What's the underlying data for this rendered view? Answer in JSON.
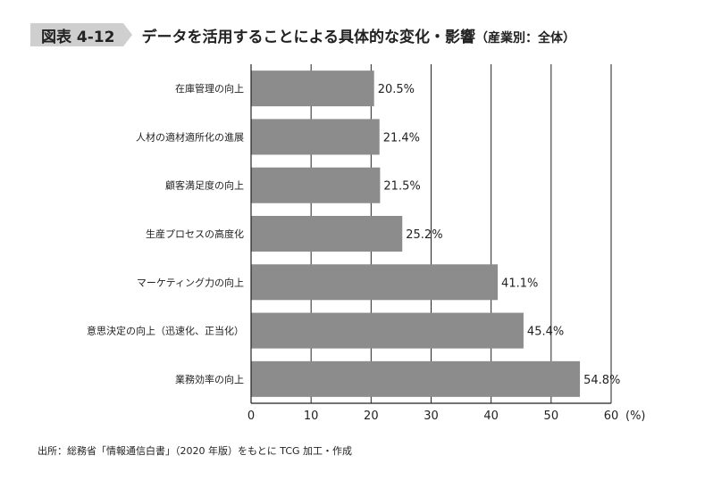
{
  "header": {
    "badge": "図表 4-12",
    "title": "データを活用することによる具体的な変化・影響",
    "subtitle": "（産業別：全体）"
  },
  "chart_data": {
    "type": "bar",
    "orientation": "horizontal",
    "categories": [
      "在庫管理の向上",
      "人材の適材適所化の進展",
      "顧客満足度の向上",
      "生産プロセスの高度化",
      "マーケティング力の向上",
      "意思決定の向上（迅速化、正当化）",
      "業務効率の向上"
    ],
    "values": [
      20.5,
      21.4,
      21.5,
      25.2,
      41.1,
      45.4,
      54.8
    ],
    "value_labels": [
      "20.5%",
      "21.4%",
      "21.5%",
      "25.2%",
      "41.1%",
      "45.4%",
      "54.8%"
    ],
    "xlim": [
      0,
      60
    ],
    "xticks": [
      0,
      10,
      20,
      30,
      40,
      50,
      60
    ],
    "xtick_labels": [
      "0",
      "10",
      "20",
      "30",
      "40",
      "50",
      "60"
    ],
    "x_unit": "(%)",
    "grid": true,
    "bar_color": "#8c8c8c"
  },
  "source": "出所：総務省「情報通信白書」（2020 年版）をもとに TCG 加工・作成"
}
